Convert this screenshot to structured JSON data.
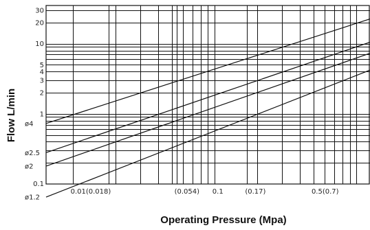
{
  "chart_data": {
    "type": "line",
    "xlabel": "Operating Pressure (Mpa)",
    "ylabel": "Flow L/min",
    "xscale": "log",
    "yscale": "log",
    "xlim": [
      0.0065,
      1.25
    ],
    "ylim": [
      0.1,
      35
    ],
    "grid": true,
    "x_tick_labels": [
      {
        "x": 0.01,
        "label": "0.01(0.018)"
      },
      {
        "x": 0.054,
        "label": "(0.054)"
      },
      {
        "x": 0.1,
        "label": "0.1"
      },
      {
        "x": 0.17,
        "label": "(0.17)"
      },
      {
        "x": 0.5,
        "label": "0.5(0.7)"
      }
    ],
    "y_tick_labels": [
      {
        "y": 30,
        "label": "30"
      },
      {
        "y": 20,
        "label": "20"
      },
      {
        "y": 10,
        "label": "10"
      },
      {
        "y": 5,
        "label": "5"
      },
      {
        "y": 4,
        "label": "4"
      },
      {
        "y": 3,
        "label": "3"
      },
      {
        "y": 2,
        "label": "2"
      },
      {
        "y": 1,
        "label": "1"
      },
      {
        "y": 0.1,
        "label": "0.1"
      }
    ],
    "x_gridlines": [
      0.01,
      0.018,
      0.02,
      0.03,
      0.04,
      0.05,
      0.054,
      0.06,
      0.07,
      0.08,
      0.09,
      0.1,
      0.17,
      0.2,
      0.3,
      0.4,
      0.5,
      0.6,
      0.7,
      0.8,
      0.9,
      1.0
    ],
    "y_gridlines": [
      0.2,
      0.3,
      0.4,
      0.5,
      0.6,
      0.7,
      0.8,
      0.9,
      1,
      2,
      3,
      4,
      5,
      6,
      7,
      8,
      9,
      10,
      20,
      30
    ],
    "series": [
      {
        "name": "ø4",
        "points": [
          [
            0.0065,
            0.73
          ],
          [
            1.25,
            22.5
          ]
        ]
      },
      {
        "name": "ø2.5",
        "points": [
          [
            0.0065,
            0.28
          ],
          [
            1.25,
            10.5
          ]
        ]
      },
      {
        "name": "ø2",
        "points": [
          [
            0.0065,
            0.18
          ],
          [
            1.25,
            7.3
          ]
        ]
      },
      {
        "name": "ø1.2",
        "points": [
          [
            0.0065,
            0.065
          ],
          [
            1.25,
            4.2
          ]
        ]
      }
    ]
  }
}
